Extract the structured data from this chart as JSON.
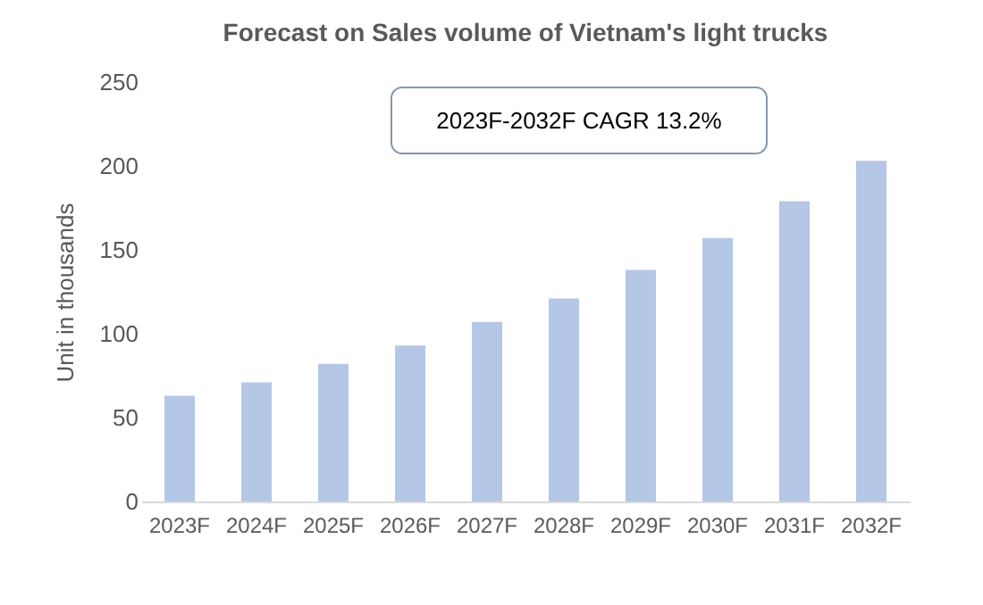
{
  "chart_data": {
    "type": "bar",
    "title": "Forecast on Sales volume of Vietnam's light trucks",
    "ylabel": "Unit in thousands",
    "categories": [
      "2023F",
      "2024F",
      "2025F",
      "2026F",
      "2027F",
      "2028F",
      "2029F",
      "2030F",
      "2031F",
      "2032F"
    ],
    "values": [
      63,
      71,
      82,
      93,
      107,
      121,
      138,
      157,
      179,
      203
    ],
    "color": "#b4c7e7",
    "ylim": [
      0,
      250
    ],
    "yticks": [
      0,
      50,
      100,
      150,
      200,
      250
    ],
    "grid": false,
    "annotations": [
      "2023F-2032F CAGR 13.2%"
    ]
  }
}
